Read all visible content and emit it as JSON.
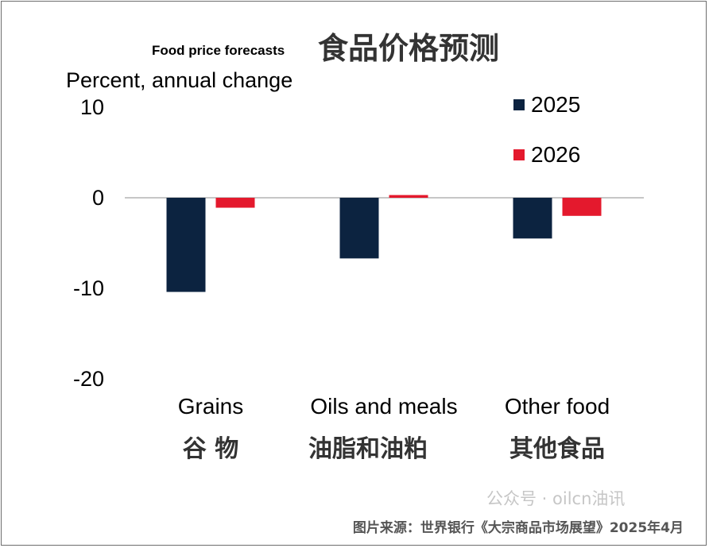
{
  "chart_data": {
    "type": "bar",
    "title": "Food price forecasts",
    "title_cn": "食品价格预测",
    "ylabel": "Percent, annual change",
    "ylim": [
      -20,
      10
    ],
    "yticks": [
      10,
      0,
      -10,
      -20
    ],
    "categories": [
      "Grains",
      "Oils and meals",
      "Other food"
    ],
    "categories_cn": [
      "谷 物",
      "油脂和油粕",
      "其他食品"
    ],
    "series": [
      {
        "name": "2025",
        "color": "#0c2340",
        "values": [
          -10.4,
          -6.7,
          -4.5
        ]
      },
      {
        "name": "2026",
        "color": "#e4192d",
        "values": [
          -1.1,
          0.3,
          -2.0
        ]
      }
    ],
    "legend_position": "top-right",
    "grid": false
  },
  "source": "图片来源：世界银行《大宗商品市场展望》2025年4月",
  "watermark": "公众号 · oilcn油讯"
}
